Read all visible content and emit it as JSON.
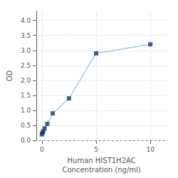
{
  "chart_data": {
    "type": "line",
    "x": [
      0,
      0.0625,
      0.125,
      0.25,
      0.5,
      1,
      2.5,
      5,
      10
    ],
    "xlabel": "Human HIST1H2AC\nConcentration (ng/ml)",
    "ylabel": "OD",
    "xlim": [
      -0.5,
      11.5
    ],
    "ylim": [
      0,
      4.3
    ],
    "xticks": [
      0,
      5,
      10
    ],
    "yticks": [
      {
        "value": 0,
        "label": "0.0"
      },
      {
        "value": 0.5,
        "label": "0.5"
      },
      {
        "value": 1,
        "label": "1.0"
      },
      {
        "value": 1.5,
        "label": "1.5"
      },
      {
        "value": 2,
        "label": "2.0"
      },
      {
        "value": 2.5,
        "label": "2.5"
      },
      {
        "value": 3,
        "label": "3.0"
      },
      {
        "value": 3.5,
        "label": "3.5"
      },
      {
        "value": 4,
        "label": "4.0"
      }
    ],
    "grid": true,
    "series": [
      {
        "type": "line",
        "color": "#A8C8E0",
        "values": [
          0.2,
          0.25,
          0.3,
          0.4,
          0.55,
          0.9,
          1.4,
          2.9,
          3.2
        ]
      },
      {
        "type": "scatter",
        "color": "#1A3A6B",
        "marker": "square",
        "values": [
          0.2,
          0.25,
          0.3,
          0.4,
          0.55,
          0.9,
          1.4,
          2.9,
          3.2
        ]
      }
    ]
  }
}
